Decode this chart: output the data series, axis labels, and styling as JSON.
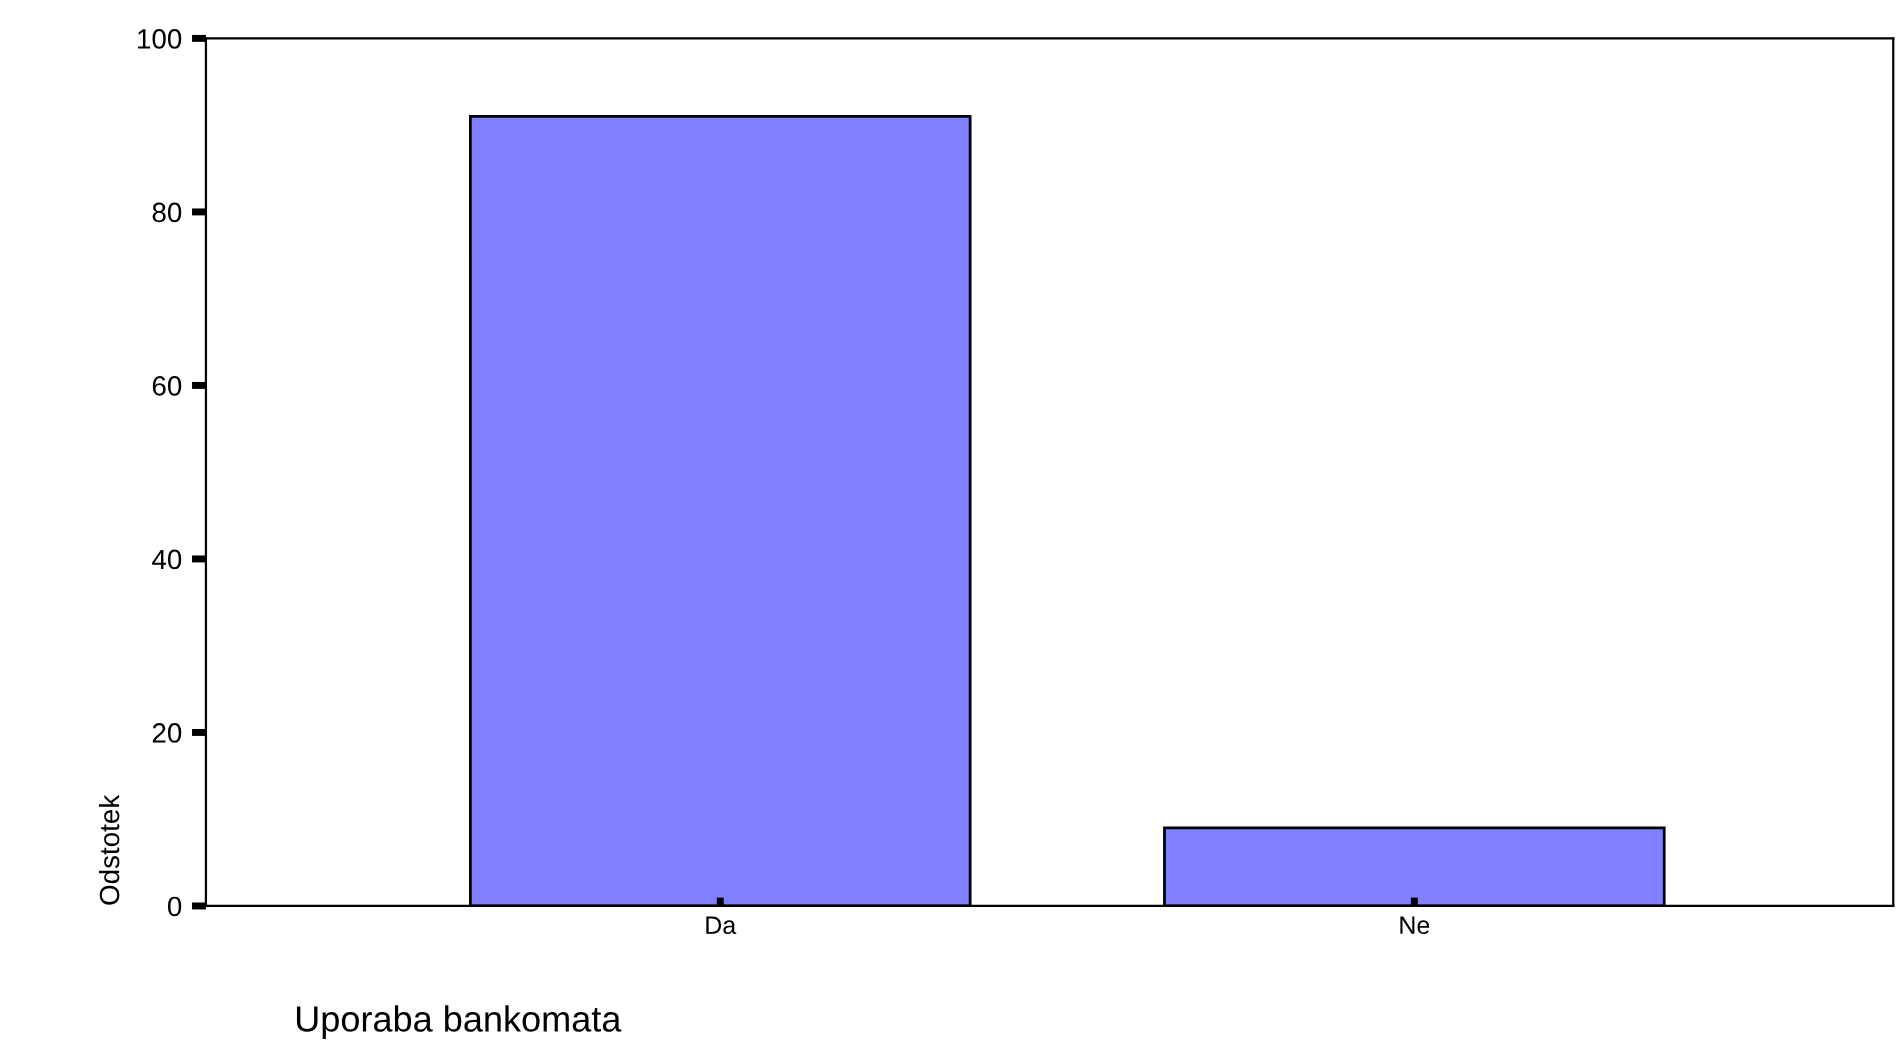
{
  "chart_data": {
    "type": "bar",
    "xlabel": "Uporaba bankomata",
    "ylabel": "Odstotek",
    "categories": [
      "Da",
      "Ne"
    ],
    "values": [
      91,
      9
    ],
    "color": "#8080ff",
    "ylim": [
      0,
      100
    ],
    "yticks": [
      0,
      20,
      40,
      60,
      80,
      100
    ],
    "grid": false,
    "legend": false
  }
}
